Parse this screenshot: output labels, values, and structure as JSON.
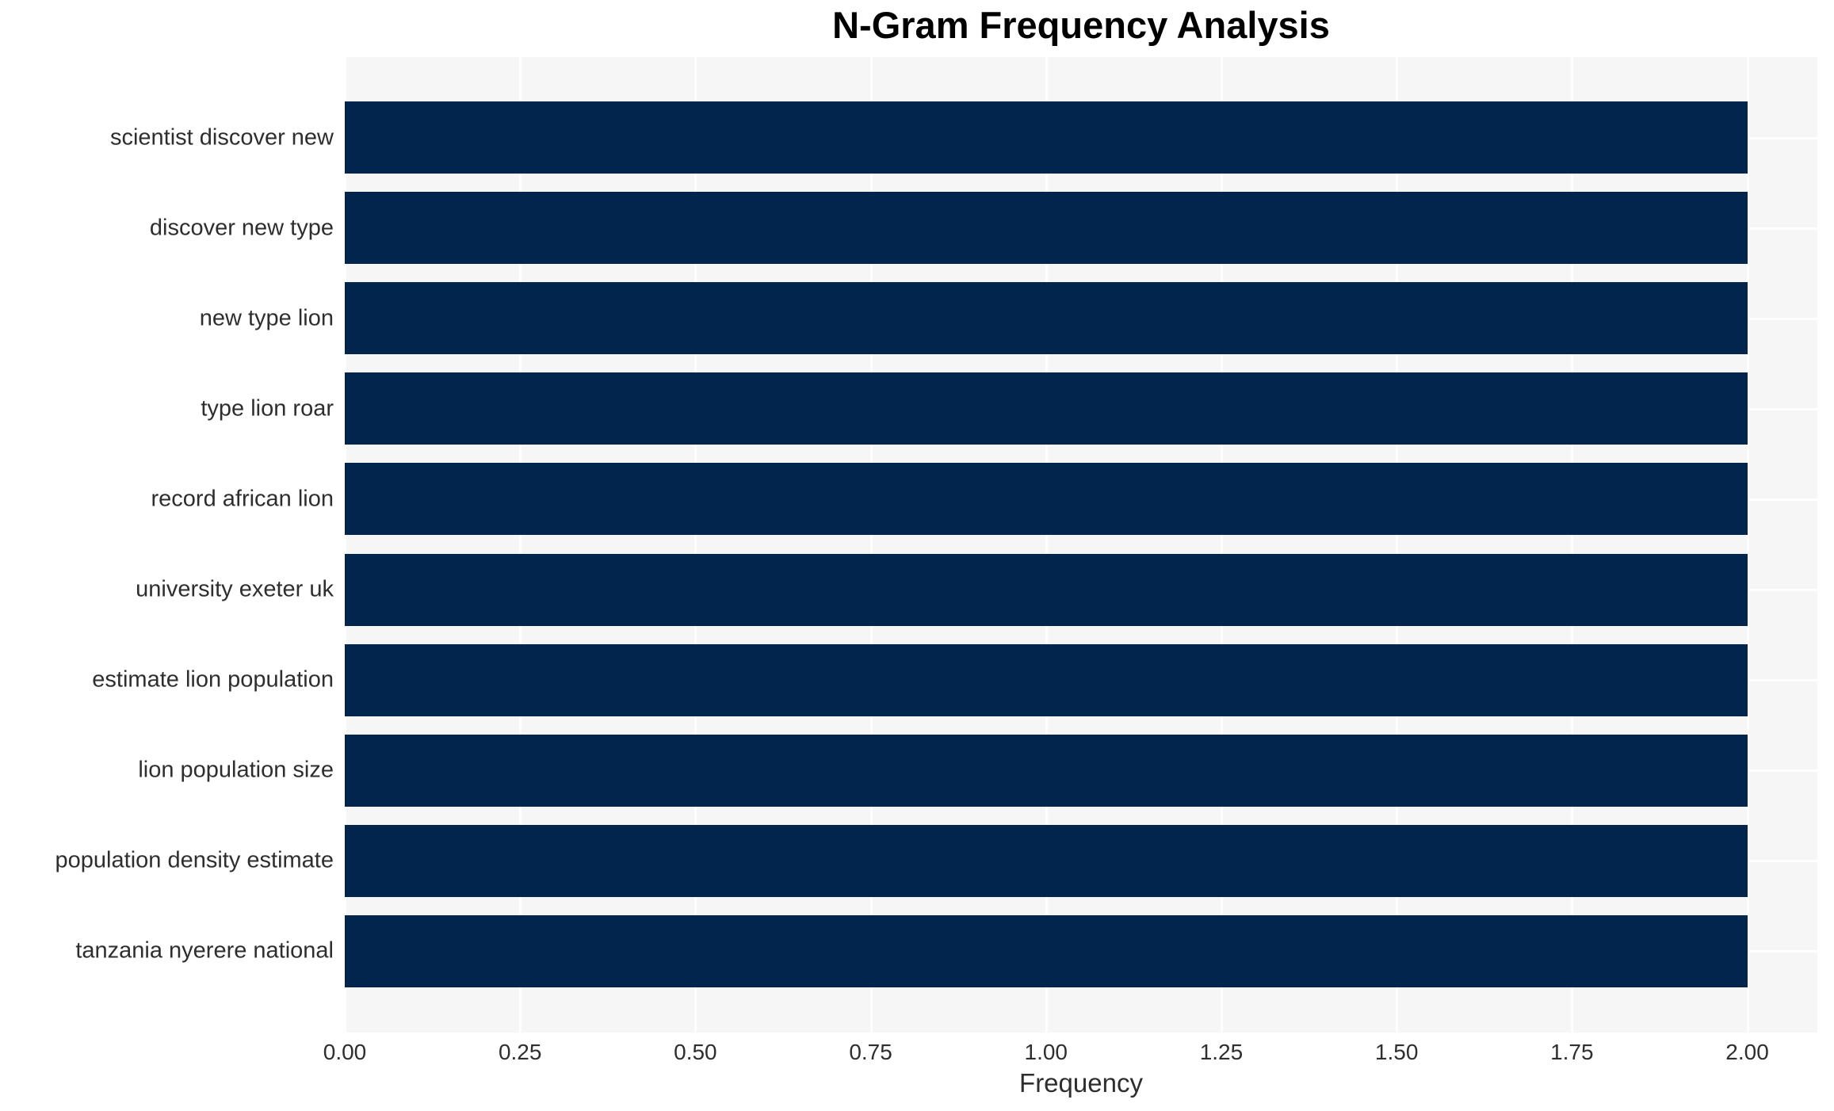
{
  "chart_data": {
    "type": "bar",
    "orientation": "horizontal",
    "title": "N-Gram Frequency Analysis",
    "xlabel": "Frequency",
    "ylabel": "",
    "categories": [
      "scientist discover new",
      "discover new type",
      "new type lion",
      "type lion roar",
      "record african lion",
      "university exeter uk",
      "estimate lion population",
      "lion population size",
      "population density estimate",
      "tanzania nyerere national"
    ],
    "values": [
      2,
      2,
      2,
      2,
      2,
      2,
      2,
      2,
      2,
      2
    ],
    "xlim": [
      0,
      2.1
    ],
    "xticks": [
      0,
      0.25,
      0.5,
      0.75,
      1,
      1.25,
      1.5,
      1.75,
      2
    ],
    "xtick_labels": [
      "0.00",
      "0.25",
      "0.50",
      "0.75",
      "1.00",
      "1.25",
      "1.50",
      "1.75",
      "2.00"
    ],
    "legend": "none",
    "grid": "white vertical and horizontal gridlines on light-gray panel",
    "colors": {
      "bar": "#02254e",
      "plot_background": "#f6f6f6",
      "gridline": "#ffffff",
      "tick_text": "#2e2e2e",
      "title_text": "#000000"
    }
  }
}
